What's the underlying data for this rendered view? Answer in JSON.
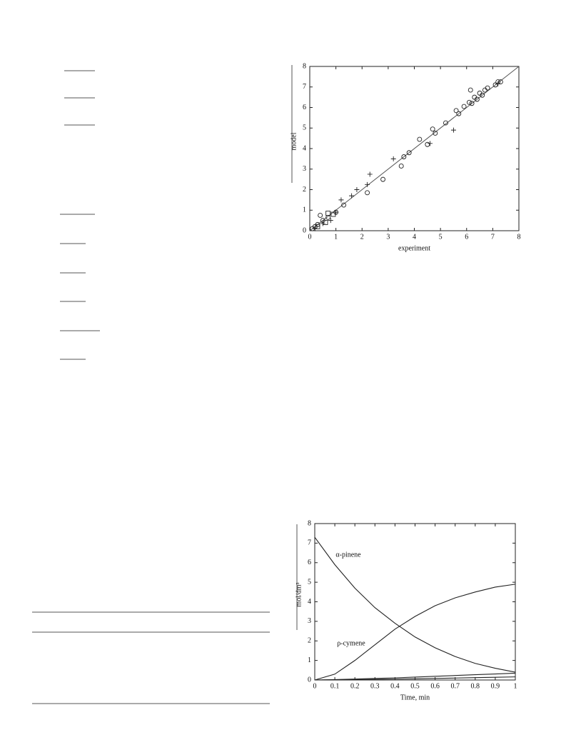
{
  "chart_data": [
    {
      "type": "scatter",
      "x_label": "experiment",
      "y_label": "model",
      "xlim": [
        0,
        8
      ],
      "ylim": [
        0,
        8
      ],
      "xticks": [
        0,
        1,
        2,
        3,
        4,
        5,
        6,
        7,
        8
      ],
      "yticks": [
        0,
        1,
        2,
        3,
        4,
        5,
        6,
        7,
        8
      ],
      "diagonal": true,
      "color": "#222",
      "series": [
        {
          "marker": "circle",
          "x": [
            0.1,
            0.2,
            0.3,
            0.4,
            0.5,
            0.7,
            1.0,
            1.3,
            2.2,
            2.8,
            3.5,
            3.6,
            3.8,
            4.2,
            4.5,
            4.7,
            4.8,
            5.2,
            5.6,
            5.7,
            5.9,
            6.1,
            6.15,
            6.2,
            6.3,
            6.4,
            6.5,
            6.6,
            6.7,
            6.8,
            7.1,
            7.2,
            7.3
          ],
          "values": [
            0.1,
            0.2,
            0.3,
            0.75,
            0.5,
            0.65,
            0.9,
            1.25,
            1.85,
            2.5,
            3.15,
            3.6,
            3.8,
            4.45,
            4.2,
            4.95,
            4.75,
            5.25,
            5.85,
            5.7,
            6.05,
            6.25,
            6.85,
            6.2,
            6.5,
            6.4,
            6.7,
            6.6,
            6.85,
            6.95,
            7.1,
            7.25,
            7.25
          ]
        },
        {
          "marker": "plus",
          "x": [
            0.2,
            0.5,
            0.8,
            1.0,
            1.2,
            1.6,
            1.8,
            2.2,
            2.3,
            3.2,
            4.6,
            5.5,
            7.2
          ],
          "values": [
            0.1,
            0.35,
            0.5,
            0.9,
            1.5,
            1.7,
            2.0,
            2.25,
            2.75,
            3.5,
            4.25,
            4.9,
            7.15
          ]
        },
        {
          "marker": "square",
          "x": [
            0.3,
            0.6,
            0.7,
            0.9
          ],
          "values": [
            0.2,
            0.4,
            0.85,
            0.8
          ]
        }
      ]
    },
    {
      "type": "line",
      "x_label": "Time, min",
      "y_label": "mol/dm³",
      "xlim": [
        0,
        1
      ],
      "ylim": [
        0,
        8
      ],
      "xticks": [
        0,
        0.1,
        0.2,
        0.3,
        0.4,
        0.5,
        0.6,
        0.7,
        0.8,
        0.9,
        1
      ],
      "yticks": [
        0,
        1,
        2,
        3,
        4,
        5,
        6,
        7,
        8
      ],
      "color": "#222",
      "x": [
        0,
        0.1,
        0.2,
        0.3,
        0.4,
        0.5,
        0.6,
        0.7,
        0.8,
        0.9,
        1
      ],
      "series": [
        {
          "name": "α-pinene",
          "values": [
            7.3,
            5.9,
            4.7,
            3.7,
            2.9,
            2.2,
            1.65,
            1.2,
            0.85,
            0.6,
            0.4
          ]
        },
        {
          "name": "ρ-cymene",
          "values": [
            0,
            0.3,
            1.0,
            1.8,
            2.6,
            3.25,
            3.8,
            4.2,
            4.5,
            4.75,
            4.9
          ]
        },
        {
          "values": [
            0,
            0.02,
            0.05,
            0.08,
            0.11,
            0.15,
            0.19,
            0.23,
            0.27,
            0.31,
            0.35
          ]
        },
        {
          "values": [
            0,
            0.01,
            0.02,
            0.03,
            0.05,
            0.06,
            0.08,
            0.1,
            0.12,
            0.14,
            0.16
          ]
        }
      ]
    }
  ]
}
